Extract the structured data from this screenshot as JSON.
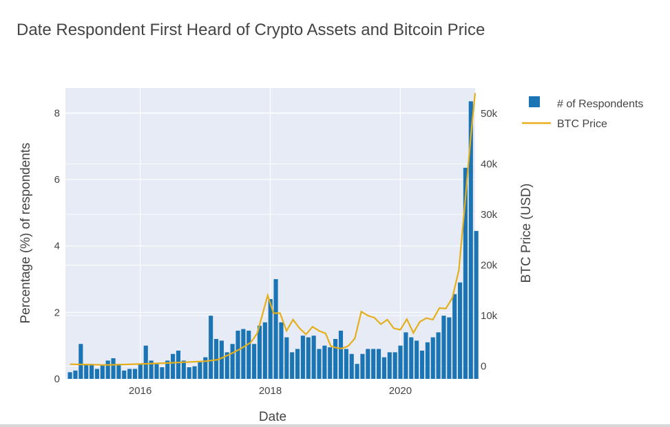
{
  "chart_data": {
    "type": "bar+line",
    "title": "Date Respondent First Heard of Crypto Assets and Bitcoin Price",
    "xlabel": "Date",
    "ylabel": "Percentage (%) of respondents",
    "y2label": "BTC Price (USD)",
    "xlim": [
      2014.85,
      2021.15
    ],
    "ylim": [
      0,
      8.75
    ],
    "y2lim": [
      -2500,
      55000
    ],
    "x_ticks": [
      2016,
      2018,
      2020
    ],
    "x_tick_labels": [
      "2016",
      "2018",
      "2020"
    ],
    "y_ticks": [
      0,
      2,
      4,
      6,
      8
    ],
    "y_tick_labels": [
      "0",
      "2",
      "4",
      "6",
      "8"
    ],
    "y2_ticks": [
      0,
      10000,
      20000,
      30000,
      40000,
      50000
    ],
    "y2_tick_labels": [
      "0",
      "10k",
      "20k",
      "30k",
      "40k",
      "50k"
    ],
    "legend": {
      "position": "top-right",
      "items": [
        "# of Respondents",
        "BTC Price"
      ]
    },
    "grid": true,
    "series": [
      {
        "name": "# of Respondents",
        "type": "bar",
        "start": 2014.92,
        "step": 0.0833,
        "values": [
          0.2,
          0.25,
          1.05,
          0.45,
          0.45,
          0.3,
          0.4,
          0.55,
          0.62,
          0.45,
          0.25,
          0.3,
          0.3,
          0.45,
          1.0,
          0.55,
          0.45,
          0.35,
          0.55,
          0.75,
          0.85,
          0.55,
          0.35,
          0.38,
          0.5,
          0.65,
          1.9,
          1.2,
          1.15,
          0.8,
          1.05,
          1.45,
          1.5,
          1.45,
          1.05,
          1.6,
          1.7,
          2.4,
          3.0,
          1.7,
          1.25,
          0.8,
          0.9,
          1.3,
          1.25,
          1.3,
          0.9,
          1.0,
          0.95,
          1.2,
          1.45,
          0.9,
          0.75,
          0.45,
          0.75,
          0.9,
          0.9,
          0.9,
          0.65,
          0.8,
          0.8,
          1.0,
          1.4,
          1.25,
          1.15,
          0.85,
          1.1,
          1.25,
          1.4,
          1.9,
          1.85,
          2.55,
          2.9,
          6.35,
          8.35,
          4.45
        ]
      },
      {
        "name": "BTC Price",
        "type": "line",
        "x": [
          2014.92,
          2015.5,
          2016.0,
          2016.5,
          2017.0,
          2017.2,
          2017.4,
          2017.55,
          2017.7,
          2017.8,
          2017.96,
          2018.05,
          2018.15,
          2018.25,
          2018.35,
          2018.45,
          2018.55,
          2018.65,
          2018.75,
          2018.85,
          2018.93,
          2019.0,
          2019.1,
          2019.2,
          2019.3,
          2019.4,
          2019.5,
          2019.6,
          2019.7,
          2019.8,
          2019.9,
          2020.0,
          2020.1,
          2020.2,
          2020.3,
          2020.4,
          2020.5,
          2020.6,
          2020.7,
          2020.8,
          2020.9,
          2021.0,
          2021.08,
          2021.15
        ],
        "values": [
          400,
          250,
          430,
          680,
          1000,
          1300,
          2500,
          3500,
          4700,
          6500,
          14000,
          10500,
          10500,
          7000,
          9200,
          7500,
          6300,
          7800,
          7000,
          6500,
          4000,
          3700,
          3500,
          4000,
          5500,
          10800,
          10000,
          9600,
          8300,
          9200,
          7500,
          7200,
          9300,
          6600,
          8800,
          9500,
          9200,
          11500,
          11400,
          13500,
          19000,
          33000,
          45000,
          54000
        ]
      }
    ],
    "colors": {
      "bar": "#1b74b3",
      "line": "#e5ae1a",
      "plot_bg": "#e6ebf5",
      "grid": "#ffffff"
    }
  }
}
